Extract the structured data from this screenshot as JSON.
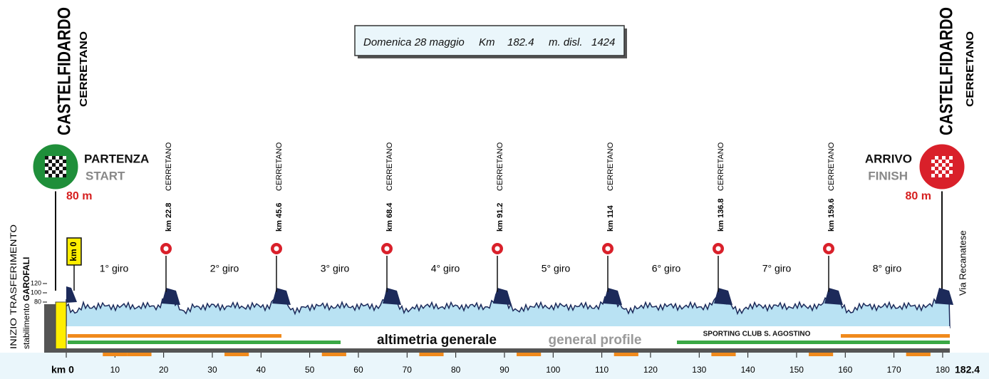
{
  "header": {
    "date": "Domenica 28 maggio",
    "km_label": "Km",
    "km": "182.4",
    "disl_label": "m. disl.",
    "disl": "1424"
  },
  "start": {
    "town": "CASTELFIDARDO",
    "locality": "CERRETANO",
    "label": "PARTENZA",
    "label_en": "START",
    "altitude": "80 m"
  },
  "finish": {
    "town": "CASTELFIDARDO",
    "locality": "CERRETANO",
    "label": "ARRIVO",
    "label_en": "FINISH",
    "altitude": "80 m"
  },
  "transfer": {
    "line1": "INIZIO TRASFERIMENTO",
    "line2_prefix": "stabilimento",
    "line2_name": "GAROFALI"
  },
  "km0_badge": "km 0",
  "passages": [
    {
      "km": "km 22.8",
      "name": "CERRETANO"
    },
    {
      "km": "km 45.6",
      "name": "CERRETANO"
    },
    {
      "km": "km 68.4",
      "name": "CERRETANO"
    },
    {
      "km": "km 91.2",
      "name": "CERRETANO"
    },
    {
      "km": "km 114",
      "name": "CERRETANO"
    },
    {
      "km": "km 136.8",
      "name": "CERRETANO"
    },
    {
      "km": "km 159.6",
      "name": "CERRETANO"
    }
  ],
  "laps": [
    "1° giro",
    "2° giro",
    "3° giro",
    "4° giro",
    "5° giro",
    "6° giro",
    "7° giro",
    "8° giro"
  ],
  "elevation_ticks": [
    "120",
    "100",
    "80"
  ],
  "road": "Via Recanatese",
  "profile_labels": {
    "italian": "altimetria generale",
    "english": "general profile",
    "sponsor": "SPORTING CLUB S. AGOSTINO"
  },
  "km_axis": {
    "start": "km 0",
    "ticks": [
      "10",
      "20",
      "30",
      "40",
      "50",
      "60",
      "70",
      "80",
      "90",
      "100",
      "110",
      "120",
      "130",
      "140",
      "150",
      "160",
      "170",
      "180"
    ],
    "end": "182.4"
  }
}
